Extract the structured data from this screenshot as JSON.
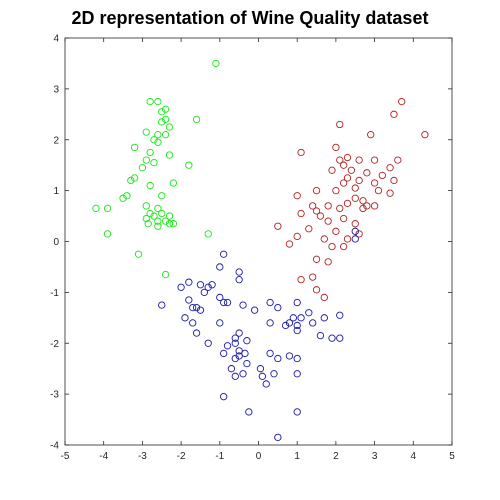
{
  "chart_data": {
    "type": "scatter",
    "title": "2D representation of Wine Quality dataset",
    "xlabel": "",
    "ylabel": "",
    "xlim": [
      -5,
      5
    ],
    "ylim": [
      -4,
      4
    ],
    "xticks": [
      "-5",
      "-4",
      "-3",
      "-2",
      "-1",
      "0",
      "1",
      "2",
      "3",
      "4",
      "5"
    ],
    "yticks": [
      "-4",
      "-3",
      "-2",
      "-1",
      "0",
      "1",
      "2",
      "3",
      "4"
    ],
    "grid": false,
    "marker": "open-circle",
    "series": [
      {
        "color": "#19e619",
        "points": [
          [
            -1.1,
            3.5
          ],
          [
            -2.8,
            2.75
          ],
          [
            -2.6,
            2.75
          ],
          [
            -2.4,
            2.6
          ],
          [
            -2.5,
            2.55
          ],
          [
            -2.4,
            2.4
          ],
          [
            -1.6,
            2.4
          ],
          [
            -2.5,
            2.35
          ],
          [
            -2.3,
            2.25
          ],
          [
            -2.9,
            2.15
          ],
          [
            -2.6,
            2.1
          ],
          [
            -2.4,
            2.1
          ],
          [
            -2.7,
            2.0
          ],
          [
            -2.6,
            1.95
          ],
          [
            -3.2,
            1.85
          ],
          [
            -2.8,
            1.75
          ],
          [
            -2.3,
            1.7
          ],
          [
            -2.9,
            1.6
          ],
          [
            -2.7,
            1.55
          ],
          [
            -3.0,
            1.45
          ],
          [
            -1.8,
            1.5
          ],
          [
            -3.2,
            1.25
          ],
          [
            -3.3,
            1.2
          ],
          [
            -2.2,
            1.15
          ],
          [
            -2.8,
            1.1
          ],
          [
            -3.4,
            0.9
          ],
          [
            -3.5,
            0.85
          ],
          [
            -2.5,
            0.9
          ],
          [
            -2.9,
            0.7
          ],
          [
            -2.6,
            0.65
          ],
          [
            -4.2,
            0.65
          ],
          [
            -3.9,
            0.65
          ],
          [
            -2.8,
            0.55
          ],
          [
            -2.5,
            0.55
          ],
          [
            -2.7,
            0.5
          ],
          [
            -2.3,
            0.5
          ],
          [
            -2.9,
            0.45
          ],
          [
            -2.4,
            0.4
          ],
          [
            -2.6,
            0.4
          ],
          [
            -2.85,
            0.35
          ],
          [
            -2.3,
            0.35
          ],
          [
            -2.6,
            0.3
          ],
          [
            -2.2,
            0.35
          ],
          [
            -3.9,
            0.15
          ],
          [
            -1.3,
            0.15
          ],
          [
            -3.1,
            -0.25
          ],
          [
            -2.4,
            -0.65
          ]
        ]
      },
      {
        "color": "#b22222",
        "points": [
          [
            3.7,
            2.75
          ],
          [
            4.3,
            2.1
          ],
          [
            3.5,
            2.5
          ],
          [
            2.1,
            2.3
          ],
          [
            2.9,
            2.1
          ],
          [
            2.0,
            1.85
          ],
          [
            2.3,
            1.65
          ],
          [
            2.1,
            1.6
          ],
          [
            3.6,
            1.6
          ],
          [
            1.1,
            1.75
          ],
          [
            2.6,
            1.6
          ],
          [
            3.0,
            1.6
          ],
          [
            2.2,
            1.5
          ],
          [
            2.4,
            1.4
          ],
          [
            3.4,
            1.45
          ],
          [
            1.9,
            1.4
          ],
          [
            2.8,
            1.35
          ],
          [
            3.2,
            1.3
          ],
          [
            2.3,
            1.25
          ],
          [
            2.6,
            1.2
          ],
          [
            3.5,
            1.2
          ],
          [
            2.2,
            1.15
          ],
          [
            3.0,
            1.15
          ],
          [
            2.5,
            1.05
          ],
          [
            1.5,
            1.0
          ],
          [
            3.1,
            1.0
          ],
          [
            2.0,
            1.0
          ],
          [
            3.4,
            0.95
          ],
          [
            2.5,
            0.85
          ],
          [
            1.0,
            0.9
          ],
          [
            2.7,
            0.8
          ],
          [
            2.3,
            0.75
          ],
          [
            2.8,
            0.7
          ],
          [
            1.4,
            0.7
          ],
          [
            1.8,
            0.7
          ],
          [
            3.0,
            0.7
          ],
          [
            2.1,
            0.65
          ],
          [
            2.7,
            0.65
          ],
          [
            1.5,
            0.6
          ],
          [
            1.1,
            0.55
          ],
          [
            1.6,
            0.5
          ],
          [
            2.2,
            0.45
          ],
          [
            1.8,
            0.4
          ],
          [
            2.5,
            0.35
          ],
          [
            0.5,
            0.3
          ],
          [
            1.3,
            0.25
          ],
          [
            2.0,
            0.2
          ],
          [
            2.6,
            0.15
          ],
          [
            1.0,
            0.1
          ],
          [
            1.7,
            0.05
          ],
          [
            2.3,
            0.05
          ],
          [
            0.8,
            -0.05
          ],
          [
            1.9,
            -0.1
          ],
          [
            2.2,
            -0.1
          ],
          [
            1.5,
            -0.35
          ],
          [
            1.8,
            -0.4
          ],
          [
            1.1,
            -0.75
          ],
          [
            1.5,
            -0.95
          ],
          [
            1.4,
            -0.7
          ],
          [
            1.7,
            -1.1
          ]
        ]
      },
      {
        "color": "#1a1aa6",
        "points": [
          [
            2.5,
            0.2
          ],
          [
            2.5,
            0.05
          ],
          [
            -0.9,
            -0.25
          ],
          [
            -0.5,
            -0.6
          ],
          [
            -1.0,
            -0.5
          ],
          [
            -1.2,
            -0.85
          ],
          [
            -0.5,
            -0.75
          ],
          [
            -1.8,
            -0.8
          ],
          [
            -2.0,
            -0.9
          ],
          [
            -1.5,
            -0.85
          ],
          [
            -1.3,
            -0.9
          ],
          [
            -1.4,
            -1.0
          ],
          [
            -1.0,
            -1.1
          ],
          [
            -1.8,
            -1.15
          ],
          [
            -0.9,
            -1.2
          ],
          [
            -0.8,
            -1.2
          ],
          [
            -2.5,
            -1.25
          ],
          [
            -1.7,
            -1.3
          ],
          [
            -1.6,
            -1.3
          ],
          [
            -0.4,
            -1.25
          ],
          [
            -0.1,
            -1.35
          ],
          [
            0.3,
            -1.2
          ],
          [
            1.0,
            -1.2
          ],
          [
            0.5,
            -1.3
          ],
          [
            -1.5,
            -1.35
          ],
          [
            -1.9,
            -1.5
          ],
          [
            -1.7,
            -1.6
          ],
          [
            1.3,
            -1.4
          ],
          [
            1.7,
            -1.5
          ],
          [
            2.1,
            -1.45
          ],
          [
            1.4,
            -1.6
          ],
          [
            0.8,
            -1.6
          ],
          [
            1.0,
            -1.65
          ],
          [
            -1.0,
            -1.6
          ],
          [
            0.3,
            -1.6
          ],
          [
            0.9,
            -1.5
          ],
          [
            1.1,
            -1.5
          ],
          [
            0.7,
            -1.65
          ],
          [
            -1.6,
            -1.8
          ],
          [
            -0.5,
            -1.8
          ],
          [
            1.6,
            -1.85
          ],
          [
            1.9,
            -1.9
          ],
          [
            2.1,
            -1.9
          ],
          [
            -0.6,
            -1.9
          ],
          [
            -0.3,
            -1.95
          ],
          [
            -1.3,
            -2.0
          ],
          [
            -0.6,
            -2.0
          ],
          [
            -0.8,
            -2.05
          ],
          [
            1.0,
            -1.75
          ],
          [
            -0.9,
            -2.2
          ],
          [
            -0.5,
            -2.15
          ],
          [
            -0.35,
            -2.2
          ],
          [
            0.3,
            -2.2
          ],
          [
            -0.5,
            -2.25
          ],
          [
            0.8,
            -2.25
          ],
          [
            0.5,
            -2.3
          ],
          [
            1.0,
            -2.3
          ],
          [
            -0.6,
            -2.3
          ],
          [
            -0.3,
            -2.4
          ],
          [
            -0.7,
            -2.5
          ],
          [
            0.4,
            -2.6
          ],
          [
            0.05,
            -2.5
          ],
          [
            0.1,
            -2.65
          ],
          [
            -0.4,
            -2.6
          ],
          [
            1.0,
            -2.6
          ],
          [
            -0.6,
            -2.65
          ],
          [
            0.2,
            -2.8
          ],
          [
            -0.9,
            -3.05
          ],
          [
            -0.25,
            -3.35
          ],
          [
            1.0,
            -3.35
          ],
          [
            0.5,
            -3.85
          ]
        ]
      }
    ]
  }
}
